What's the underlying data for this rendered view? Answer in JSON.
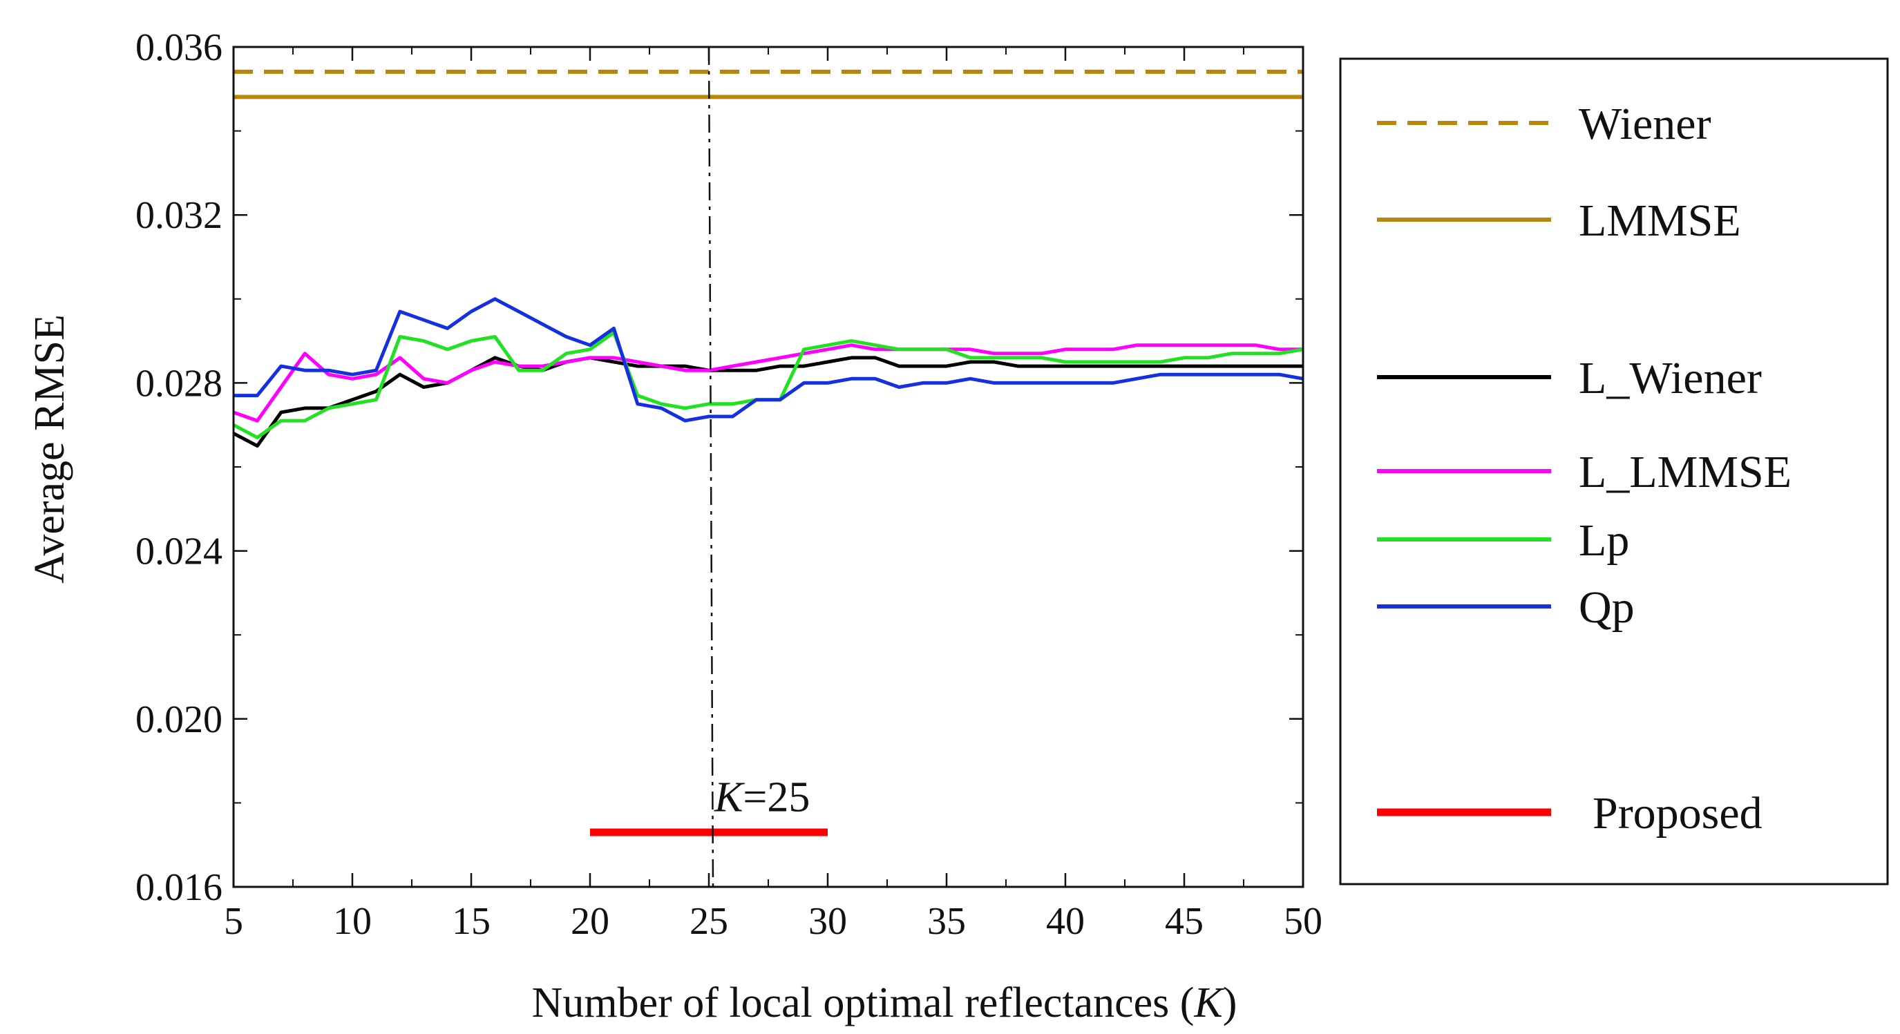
{
  "chart_data": {
    "type": "line",
    "title": "",
    "xlabel": "Number of local optimal reflectances (",
    "xlabel_var": "K",
    "xlabel_end": ")",
    "ylabel": "Average RMSE",
    "xlim": [
      5,
      50
    ],
    "ylim": [
      0.016,
      0.036
    ],
    "xticks": [
      "5",
      "10",
      "15",
      "20",
      "25",
      "30",
      "35",
      "40",
      "45",
      "50"
    ],
    "yticks": [
      "0.016",
      "0.020",
      "0.024",
      "0.028",
      "0.032",
      "0.036"
    ],
    "x": [
      5,
      6,
      7,
      8,
      9,
      10,
      11,
      12,
      13,
      14,
      15,
      16,
      17,
      18,
      19,
      20,
      21,
      22,
      23,
      24,
      25,
      26,
      27,
      28,
      29,
      30,
      31,
      32,
      33,
      34,
      35,
      36,
      37,
      38,
      39,
      40,
      41,
      42,
      43,
      44,
      45,
      46,
      47,
      48,
      49,
      50
    ],
    "series": [
      {
        "name": "Wiener",
        "color": "#b8860b",
        "style": "dashed",
        "constant": 0.03541
      },
      {
        "name": "LMMSE",
        "color": "#b8860b",
        "style": "solid",
        "constant": 0.03481
      },
      {
        "name": "L_Wiener",
        "color": "#000000",
        "style": "solid",
        "values": [
          0.0268,
          0.0265,
          0.0273,
          0.0274,
          0.0274,
          0.0276,
          0.0278,
          0.0282,
          0.0279,
          0.028,
          0.0283,
          0.0286,
          0.0284,
          0.0283,
          0.0285,
          0.0286,
          0.0285,
          0.0284,
          0.0284,
          0.0284,
          0.0283,
          0.0283,
          0.0283,
          0.0284,
          0.0284,
          0.0285,
          0.0286,
          0.0286,
          0.0284,
          0.0284,
          0.0284,
          0.0285,
          0.0285,
          0.0284,
          0.0284,
          0.0284,
          0.0284,
          0.0284,
          0.0284,
          0.0284,
          0.0284,
          0.0284,
          0.0284,
          0.0284,
          0.0284,
          0.0284
        ]
      },
      {
        "name": "L_LMMSE",
        "color": "#ff00ff",
        "style": "solid",
        "values": [
          0.0273,
          0.0271,
          0.0279,
          0.0287,
          0.0282,
          0.0281,
          0.0282,
          0.0286,
          0.0281,
          0.028,
          0.0283,
          0.0285,
          0.0284,
          0.0284,
          0.0285,
          0.0286,
          0.0286,
          0.0285,
          0.0284,
          0.0283,
          0.0283,
          0.0284,
          0.0285,
          0.0286,
          0.0287,
          0.0288,
          0.0289,
          0.0288,
          0.0288,
          0.0288,
          0.0288,
          0.0288,
          0.0287,
          0.0287,
          0.0287,
          0.0288,
          0.0288,
          0.0288,
          0.0289,
          0.0289,
          0.0289,
          0.0289,
          0.0289,
          0.0289,
          0.0288,
          0.0288
        ]
      },
      {
        "name": "Lp",
        "color": "#22e022",
        "style": "solid",
        "values": [
          0.027,
          0.0267,
          0.0271,
          0.0271,
          0.0274,
          0.0275,
          0.0276,
          0.0291,
          0.029,
          0.0288,
          0.029,
          0.0291,
          0.0283,
          0.0283,
          0.0287,
          0.0288,
          0.0292,
          0.0277,
          0.0275,
          0.0274,
          0.0275,
          0.0275,
          0.0276,
          0.0276,
          0.0288,
          0.0289,
          0.029,
          0.0289,
          0.0288,
          0.0288,
          0.0288,
          0.0286,
          0.0286,
          0.0286,
          0.0286,
          0.0285,
          0.0285,
          0.0285,
          0.0285,
          0.0285,
          0.0286,
          0.0286,
          0.0287,
          0.0287,
          0.0287,
          0.0288
        ]
      },
      {
        "name": "Qp",
        "color": "#1530e0",
        "style": "solid",
        "values": [
          0.0277,
          0.0277,
          0.0284,
          0.0283,
          0.0283,
          0.0282,
          0.0283,
          0.0297,
          0.0295,
          0.0293,
          0.0297,
          0.03,
          0.0297,
          0.0294,
          0.0291,
          0.0289,
          0.0293,
          0.0275,
          0.0274,
          0.0271,
          0.0272,
          0.0272,
          0.0276,
          0.0276,
          0.028,
          0.028,
          0.0281,
          0.0281,
          0.0279,
          0.028,
          0.028,
          0.0281,
          0.028,
          0.028,
          0.028,
          0.028,
          0.028,
          0.028,
          0.0281,
          0.0282,
          0.0282,
          0.0282,
          0.0282,
          0.0282,
          0.0282,
          0.0281
        ]
      },
      {
        "name": "Proposed",
        "color": "#ff0000",
        "style": "solid",
        "x_range": [
          20,
          30
        ],
        "constant": 0.0173
      }
    ],
    "vline": {
      "x": 25,
      "style": "dash-dot"
    },
    "annotation": {
      "var": "K",
      "rest": "=25",
      "x": 25,
      "y": 0.0178
    },
    "legend": [
      "Wiener",
      "LMMSE",
      "L_Wiener",
      "L_LMMSE",
      "Lp",
      "Qp",
      "Proposed"
    ],
    "legend_placement": "right, outside plot in box",
    "grid": false
  }
}
